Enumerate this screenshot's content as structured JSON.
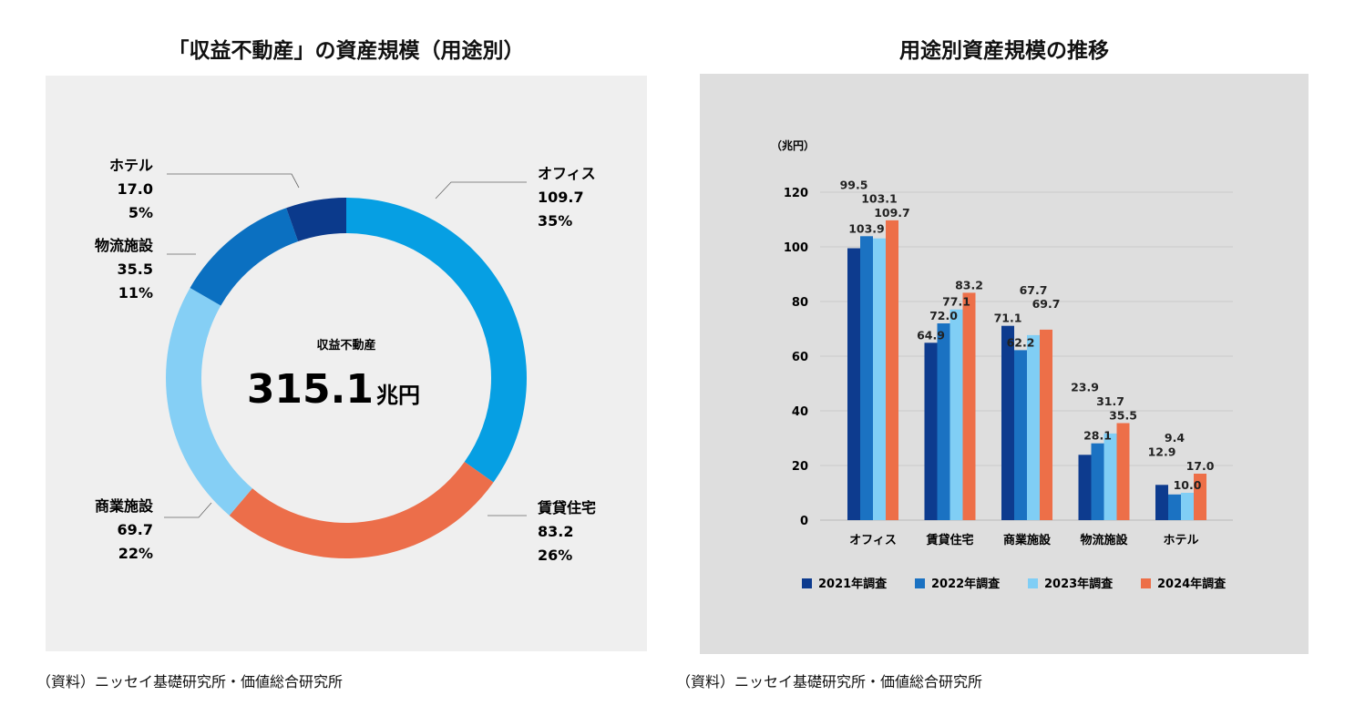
{
  "left": {
    "title": "「収益不動産」の資産規模（用途別）",
    "source": "（資料）ニッセイ基礎研究所・価値総合研究所",
    "center_label": "収益不動産",
    "center_value": "315.1",
    "center_unit": "兆円"
  },
  "right": {
    "title": "用途別資産規模の推移",
    "source": "（資料）ニッセイ基礎研究所・価値総合研究所"
  },
  "chart_data": [
    {
      "type": "pie",
      "donut": true,
      "title": "「収益不動産」の資産規模（用途別）",
      "total": 315.1,
      "unit": "兆円",
      "slices": [
        {
          "label": "オフィス",
          "value": 109.7,
          "percent": "35%",
          "color": "#069fe3"
        },
        {
          "label": "賃貸住宅",
          "value": 83.2,
          "percent": "26%",
          "color": "#ec6e4a"
        },
        {
          "label": "商業施設",
          "value": 69.7,
          "percent": "22%",
          "color": "#85cff5"
        },
        {
          "label": "物流施設",
          "value": 35.5,
          "percent": "11%",
          "color": "#0b70c1"
        },
        {
          "label": "ホテル",
          "value": 17.0,
          "percent": "5%",
          "color": "#0b3a8c"
        }
      ]
    },
    {
      "type": "bar",
      "title": "用途別資産規模の推移",
      "ylabel": "（兆円）",
      "ylim": [
        0,
        120
      ],
      "yticks": [
        0,
        20,
        40,
        60,
        80,
        100,
        120
      ],
      "grid": true,
      "legend_position": "bottom",
      "categories": [
        "オフィス",
        "賃貸住宅",
        "商業施設",
        "物流施設",
        "ホテル"
      ],
      "series": [
        {
          "name": "2021年調査",
          "color": "#0d3b8e",
          "values": [
            99.5,
            64.9,
            71.1,
            23.9,
            12.9
          ]
        },
        {
          "name": "2022年調査",
          "color": "#1b72c2",
          "values": [
            103.9,
            72.0,
            62.2,
            28.1,
            9.4
          ]
        },
        {
          "name": "2023年調査",
          "color": "#80cef5",
          "values": [
            103.1,
            77.1,
            67.7,
            31.7,
            10.0
          ]
        },
        {
          "name": "2024年調査",
          "color": "#ed6f48",
          "values": [
            109.7,
            83.2,
            69.7,
            35.5,
            17.0
          ]
        }
      ]
    }
  ]
}
